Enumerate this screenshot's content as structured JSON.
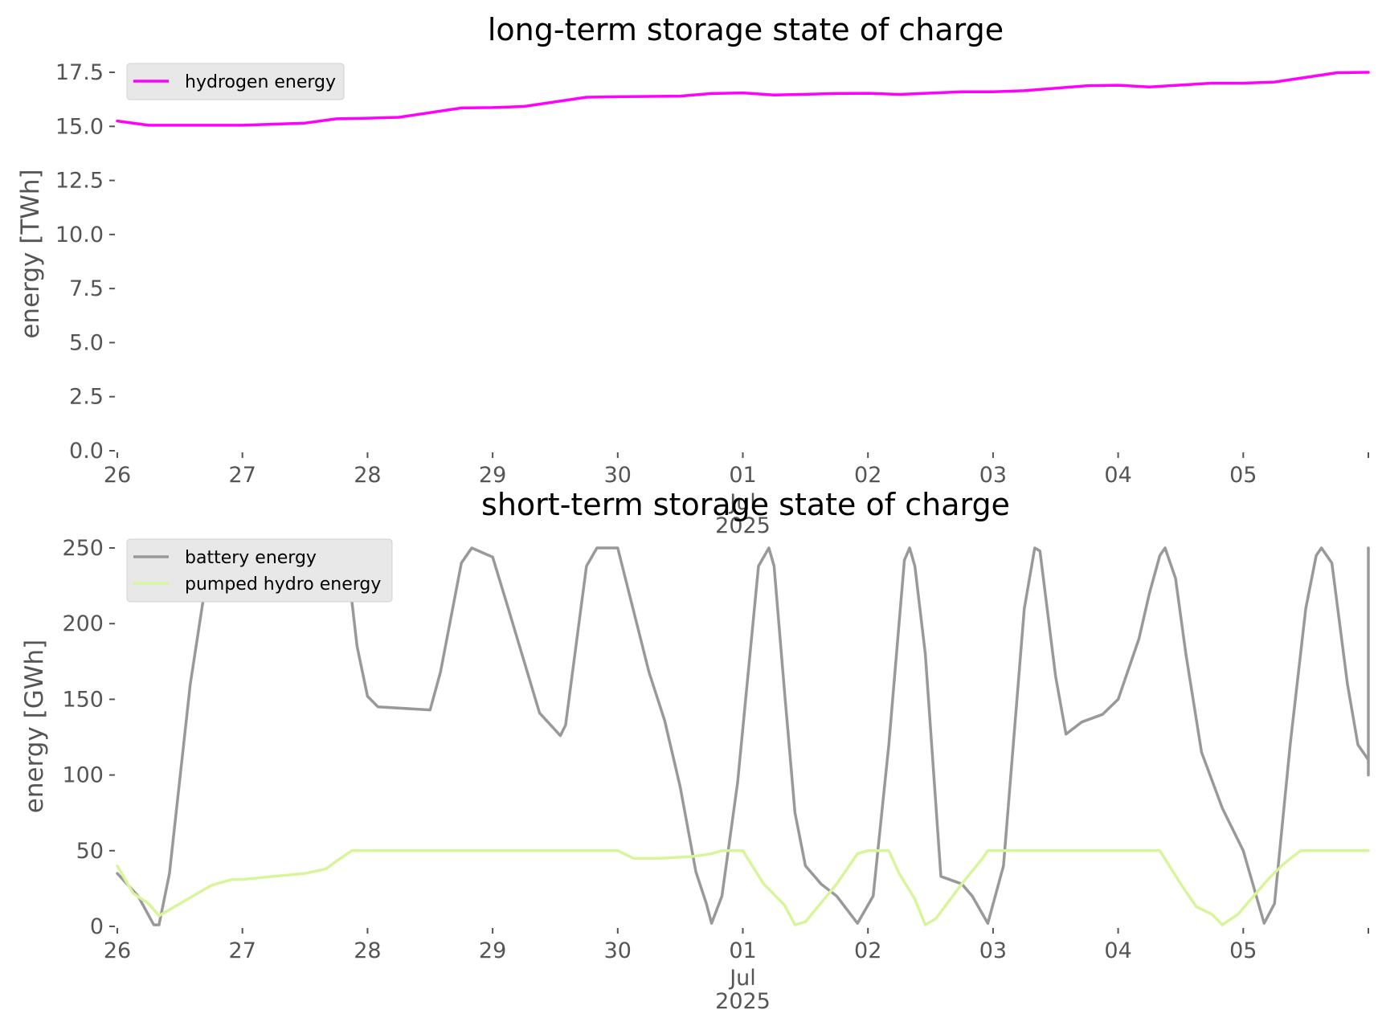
{
  "chart_data": [
    {
      "type": "line",
      "title": "long-term storage state of charge",
      "ylabel": "energy [TWh]",
      "xlabel": "",
      "ylim": [
        0,
        17.5
      ],
      "yticks": [
        0.0,
        2.5,
        5.0,
        7.5,
        10.0,
        12.5,
        15.0,
        17.5
      ],
      "ytick_labels": [
        "0.0",
        "2.5",
        "5.0",
        "7.5",
        "10.0",
        "12.5",
        "15.0",
        "17.5"
      ],
      "xlim": [
        "2025-06-26",
        "2025-07-06"
      ],
      "xticks": [
        {
          "label": "26",
          "sub": "",
          "year": ""
        },
        {
          "label": "27",
          "sub": "",
          "year": ""
        },
        {
          "label": "28",
          "sub": "",
          "year": ""
        },
        {
          "label": "29",
          "sub": "",
          "year": ""
        },
        {
          "label": "30",
          "sub": "",
          "year": ""
        },
        {
          "label": "01",
          "sub": "Jul",
          "year": "2025"
        },
        {
          "label": "02",
          "sub": "",
          "year": ""
        },
        {
          "label": "03",
          "sub": "",
          "year": ""
        },
        {
          "label": "04",
          "sub": "",
          "year": ""
        },
        {
          "label": "05",
          "sub": "",
          "year": ""
        }
      ],
      "grid": false,
      "legend_position": "top-left",
      "series": [
        {
          "name": "hydrogen energy",
          "color": "#ff00ff",
          "points": [
            [
              "2025-06-26 00:00",
              15.25
            ],
            [
              "2025-06-26 06:00",
              15.05
            ],
            [
              "2025-06-26 12:00",
              15.05
            ],
            [
              "2025-06-27 00:00",
              15.05
            ],
            [
              "2025-06-27 12:00",
              15.15
            ],
            [
              "2025-06-27 18:00",
              15.35
            ],
            [
              "2025-06-28 00:00",
              15.38
            ],
            [
              "2025-06-28 06:00",
              15.42
            ],
            [
              "2025-06-28 18:00",
              15.85
            ],
            [
              "2025-06-29 00:00",
              15.87
            ],
            [
              "2025-06-29 06:00",
              15.92
            ],
            [
              "2025-06-29 18:00",
              16.35
            ],
            [
              "2025-06-30 00:00",
              16.37
            ],
            [
              "2025-06-30 12:00",
              16.4
            ],
            [
              "2025-06-30 18:00",
              16.52
            ],
            [
              "2025-07-01 00:00",
              16.55
            ],
            [
              "2025-07-01 06:00",
              16.45
            ],
            [
              "2025-07-01 18:00",
              16.52
            ],
            [
              "2025-07-02 00:00",
              16.53
            ],
            [
              "2025-07-02 06:00",
              16.48
            ],
            [
              "2025-07-02 18:00",
              16.6
            ],
            [
              "2025-07-03 00:00",
              16.6
            ],
            [
              "2025-07-03 06:00",
              16.65
            ],
            [
              "2025-07-03 18:00",
              16.88
            ],
            [
              "2025-07-04 00:00",
              16.9
            ],
            [
              "2025-07-04 06:00",
              16.82
            ],
            [
              "2025-07-04 18:00",
              17.0
            ],
            [
              "2025-07-05 00:00",
              17.0
            ],
            [
              "2025-07-05 06:00",
              17.05
            ],
            [
              "2025-07-05 18:00",
              17.48
            ],
            [
              "2025-07-06 00:00",
              17.5
            ]
          ]
        }
      ]
    },
    {
      "type": "line",
      "title": "short-term storage state of charge",
      "ylabel": "energy [GWh]",
      "xlabel": "",
      "ylim": [
        0,
        250
      ],
      "yticks": [
        0,
        50,
        100,
        150,
        200,
        250
      ],
      "ytick_labels": [
        "0",
        "50",
        "100",
        "150",
        "200",
        "250"
      ],
      "xlim": [
        "2025-06-26",
        "2025-07-06"
      ],
      "xticks": [
        {
          "label": "26",
          "sub": "",
          "year": ""
        },
        {
          "label": "27",
          "sub": "",
          "year": ""
        },
        {
          "label": "28",
          "sub": "",
          "year": ""
        },
        {
          "label": "29",
          "sub": "",
          "year": ""
        },
        {
          "label": "30",
          "sub": "",
          "year": ""
        },
        {
          "label": "01",
          "sub": "Jul",
          "year": "2025"
        },
        {
          "label": "02",
          "sub": "",
          "year": ""
        },
        {
          "label": "03",
          "sub": "",
          "year": ""
        },
        {
          "label": "04",
          "sub": "",
          "year": ""
        },
        {
          "label": "05",
          "sub": "",
          "year": ""
        }
      ],
      "grid": false,
      "legend_position": "top-left",
      "series": [
        {
          "name": "battery energy",
          "color": "#999999",
          "points": [
            [
              "2025-06-26 00:00",
              35
            ],
            [
              "2025-06-26 04:00",
              20
            ],
            [
              "2025-06-26 07:00",
              1
            ],
            [
              "2025-06-26 08:00",
              1
            ],
            [
              "2025-06-26 10:00",
              35
            ],
            [
              "2025-06-26 14:00",
              160
            ],
            [
              "2025-06-26 18:00",
              250
            ],
            [
              "2025-06-27 00:00",
              243
            ],
            [
              "2025-06-27 12:00",
              245
            ],
            [
              "2025-06-27 18:00",
              250
            ],
            [
              "2025-06-27 20:00",
              245
            ],
            [
              "2025-06-27 22:00",
              185
            ],
            [
              "2025-06-28 00:00",
              152
            ],
            [
              "2025-06-28 02:00",
              145
            ],
            [
              "2025-06-28 12:00",
              143
            ],
            [
              "2025-06-28 14:00",
              168
            ],
            [
              "2025-06-28 18:00",
              240
            ],
            [
              "2025-06-28 20:00",
              250
            ],
            [
              "2025-06-29 00:00",
              244
            ],
            [
              "2025-06-29 03:00",
              210
            ],
            [
              "2025-06-29 09:00",
              141
            ],
            [
              "2025-06-29 13:00",
              126
            ],
            [
              "2025-06-29 14:00",
              133
            ],
            [
              "2025-06-29 18:00",
              238
            ],
            [
              "2025-06-29 20:00",
              250
            ],
            [
              "2025-06-30 00:00",
              250
            ],
            [
              "2025-06-30 06:00",
              168
            ],
            [
              "2025-06-30 09:00",
              136
            ],
            [
              "2025-06-30 12:00",
              92
            ],
            [
              "2025-06-30 15:00",
              36
            ],
            [
              "2025-06-30 17:00",
              15
            ],
            [
              "2025-06-30 18:00",
              2
            ],
            [
              "2025-06-30 20:00",
              20
            ],
            [
              "2025-06-30 23:00",
              95
            ],
            [
              "2025-07-01 03:00",
              238
            ],
            [
              "2025-07-01 05:00",
              250
            ],
            [
              "2025-07-01 06:00",
              238
            ],
            [
              "2025-07-01 08:00",
              155
            ],
            [
              "2025-07-01 10:00",
              75
            ],
            [
              "2025-07-01 12:00",
              40
            ],
            [
              "2025-07-01 15:00",
              28
            ],
            [
              "2025-07-01 18:00",
              20
            ],
            [
              "2025-07-01 22:00",
              2
            ],
            [
              "2025-07-02 01:00",
              20
            ],
            [
              "2025-07-02 04:00",
              120
            ],
            [
              "2025-07-02 07:00",
              242
            ],
            [
              "2025-07-02 08:00",
              250
            ],
            [
              "2025-07-02 09:00",
              238
            ],
            [
              "2025-07-02 11:00",
              180
            ],
            [
              "2025-07-02 14:00",
              33
            ],
            [
              "2025-07-02 18:00",
              28
            ],
            [
              "2025-07-02 20:00",
              20
            ],
            [
              "2025-07-02 23:00",
              2
            ],
            [
              "2025-07-03 02:00",
              40
            ],
            [
              "2025-07-03 06:00",
              210
            ],
            [
              "2025-07-03 08:00",
              250
            ],
            [
              "2025-07-03 09:00",
              248
            ],
            [
              "2025-07-03 12:00",
              165
            ],
            [
              "2025-07-03 14:00",
              127
            ],
            [
              "2025-07-03 17:00",
              135
            ],
            [
              "2025-07-03 21:00",
              140
            ],
            [
              "2025-07-04 00:00",
              150
            ],
            [
              "2025-07-04 04:00",
              190
            ],
            [
              "2025-07-04 06:00",
              220
            ],
            [
              "2025-07-04 08:00",
              245
            ],
            [
              "2025-07-04 09:00",
              250
            ],
            [
              "2025-07-04 11:00",
              230
            ],
            [
              "2025-07-04 13:00",
              180
            ],
            [
              "2025-07-04 16:00",
              115
            ],
            [
              "2025-07-04 20:00",
              78
            ],
            [
              "2025-07-05 00:00",
              50
            ],
            [
              "2025-07-05 04:00",
              2
            ],
            [
              "2025-07-05 06:00",
              15
            ],
            [
              "2025-07-05 09:00",
              120
            ],
            [
              "2025-07-05 12:00",
              210
            ],
            [
              "2025-07-05 14:00",
              245
            ],
            [
              "2025-07-05 15:00",
              250
            ],
            [
              "2025-07-05 17:00",
              240
            ],
            [
              "2025-07-05 20:00",
              160
            ],
            [
              "2025-07-05 22:00",
              120
            ],
            [
              "2025-07-06 00:00",
              110
            ],
            [
              "2025-07-06 03:00",
              100
            ],
            [
              "2025-07-06 07:00",
              104
            ],
            [
              "2025-07-06 09:00",
              107
            ],
            [
              "2025-07-06 12:00",
              170
            ],
            [
              "2025-07-06 14:00",
              220
            ],
            [
              "2025-07-06 16:00",
              240
            ],
            [
              "2025-07-06 19:00",
              246
            ],
            [
              "2025-07-06 21:00",
              250
            ],
            [
              "2025-07-06 22:00",
              248
            ],
            [
              "2025-07-07 00:00",
              233
            ]
          ]
        },
        {
          "name": "pumped hydro energy",
          "color": "#d9f59a",
          "points": [
            [
              "2025-06-26 00:00",
              40
            ],
            [
              "2025-06-26 03:00",
              22
            ],
            [
              "2025-06-26 06:00",
              15
            ],
            [
              "2025-06-26 08:00",
              7
            ],
            [
              "2025-06-26 12:00",
              15
            ],
            [
              "2025-06-26 18:00",
              27
            ],
            [
              "2025-06-26 22:00",
              31
            ],
            [
              "2025-06-27 00:00",
              31
            ],
            [
              "2025-06-27 06:00",
              33
            ],
            [
              "2025-06-27 12:00",
              35
            ],
            [
              "2025-06-27 16:00",
              38
            ],
            [
              "2025-06-27 18:00",
              43
            ],
            [
              "2025-06-27 21:00",
              50
            ],
            [
              "2025-06-28 00:00",
              50
            ],
            [
              "2025-06-30 00:00",
              50
            ],
            [
              "2025-06-30 03:00",
              45
            ],
            [
              "2025-06-30 08:00",
              45
            ],
            [
              "2025-06-30 14:00",
              46
            ],
            [
              "2025-06-30 18:00",
              48
            ],
            [
              "2025-06-30 20:00",
              50
            ],
            [
              "2025-07-01 00:00",
              50
            ],
            [
              "2025-07-01 04:00",
              28
            ],
            [
              "2025-07-01 08:00",
              14
            ],
            [
              "2025-07-01 10:00",
              1
            ],
            [
              "2025-07-01 12:00",
              3
            ],
            [
              "2025-07-01 18:00",
              28
            ],
            [
              "2025-07-01 22:00",
              48
            ],
            [
              "2025-07-02 00:00",
              50
            ],
            [
              "2025-07-02 04:00",
              50
            ],
            [
              "2025-07-02 06:00",
              35
            ],
            [
              "2025-07-02 09:00",
              18
            ],
            [
              "2025-07-02 11:00",
              1
            ],
            [
              "2025-07-02 13:00",
              5
            ],
            [
              "2025-07-02 18:00",
              28
            ],
            [
              "2025-07-02 22:00",
              45
            ],
            [
              "2025-07-02 23:00",
              50
            ],
            [
              "2025-07-04 08:00",
              50
            ],
            [
              "2025-07-04 12:00",
              28
            ],
            [
              "2025-07-04 15:00",
              13
            ],
            [
              "2025-07-04 18:00",
              8
            ],
            [
              "2025-07-04 20:00",
              1
            ],
            [
              "2025-07-04 23:00",
              8
            ],
            [
              "2025-07-05 05:00",
              32
            ],
            [
              "2025-07-05 08:00",
              42
            ],
            [
              "2025-07-05 11:00",
              50
            ],
            [
              "2025-07-07 00:00",
              50
            ]
          ]
        }
      ]
    }
  ]
}
